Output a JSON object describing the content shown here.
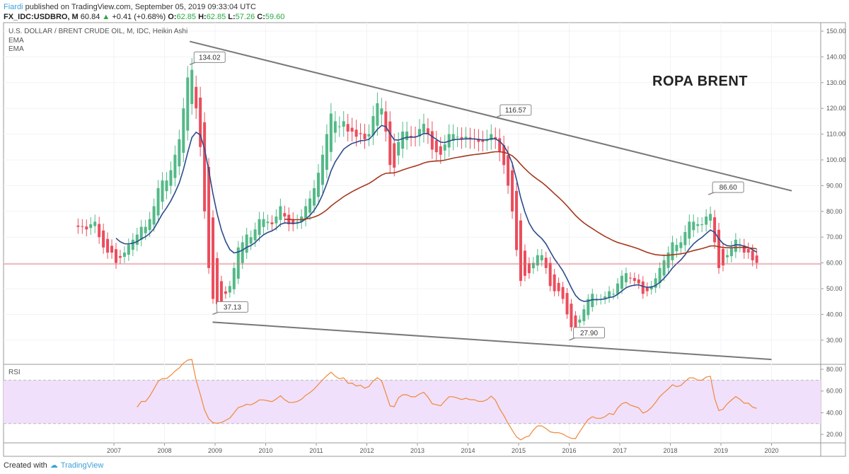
{
  "header": {
    "author": "Fiardi",
    "published": "published on TradingView.com, September 05, 2019 09:33:04 UTC",
    "symbol": "FX_IDC:USDBRO, M",
    "last": "60.84",
    "change": "+0.41 (+0.68%)",
    "o_label": "O:",
    "o": "62.85",
    "h_label": "H:",
    "h": "62.85",
    "l_label": "L:",
    "l": "57.26",
    "c_label": "C:",
    "c": "59.60"
  },
  "legend": {
    "series": "U.S. DOLLAR / BRENT CRUDE OIL, M, IDC, Heikin Ashi",
    "ema1": "EMA",
    "ema2": "EMA",
    "rsi": "RSI"
  },
  "annotation_title": "ROPA BRENT",
  "footer": {
    "created": "Created with",
    "brand": "TradingView"
  },
  "colors": {
    "up": "#53b987",
    "down": "#eb4d5c",
    "ema_fast": "#2b4c8c",
    "ema_slow": "#a5381e",
    "rsi": "#f0883b",
    "rsi_band": "#f0e0fb",
    "trendline": "#787878",
    "last_line": "#e5636c"
  },
  "chart_data": {
    "type": "candlestick",
    "start_month": "2006-04",
    "heikin_ashi_close": [
      74,
      74,
      73,
      75,
      76,
      70,
      66,
      64,
      64,
      60,
      62,
      64,
      67,
      69,
      71,
      74,
      74,
      77,
      82,
      89,
      92,
      92,
      96,
      102,
      108,
      120,
      132,
      135,
      120,
      105,
      80,
      58,
      46,
      44,
      45,
      48,
      51,
      58,
      66,
      68,
      71,
      70,
      73,
      77,
      77,
      76,
      75,
      78,
      82,
      78,
      75,
      75,
      76,
      78,
      82,
      85,
      89,
      95,
      102,
      110,
      118,
      115,
      113,
      115,
      111,
      111,
      109,
      110,
      108,
      110,
      117,
      122,
      120,
      111,
      98,
      97,
      107,
      111,
      111,
      109,
      109,
      112,
      114,
      110,
      104,
      103,
      102,
      106,
      110,
      110,
      109,
      108,
      109,
      108,
      108,
      107,
      107,
      108,
      110,
      108,
      103,
      98,
      90,
      80,
      65,
      53,
      55,
      56,
      60,
      63,
      63,
      58,
      51,
      49,
      49,
      46,
      40,
      35,
      34,
      38,
      42,
      46,
      48,
      46,
      46,
      47,
      49,
      48,
      52,
      55,
      56,
      54,
      53,
      52,
      48,
      49,
      51,
      54,
      58,
      61,
      64,
      68,
      67,
      68,
      72,
      76,
      76,
      75,
      75,
      78,
      79,
      68,
      58,
      59,
      63,
      66,
      69,
      67,
      64,
      64,
      61,
      60
    ],
    "price_axis": {
      "ticks": [
        "150.00",
        "140.00",
        "130.00",
        "120.00",
        "110.00",
        "100.00",
        "90.00",
        "80.00",
        "70.00",
        "60.00",
        "50.00",
        "40.00",
        "30.00"
      ],
      "range": [
        20,
        153
      ]
    },
    "rsi_axis": {
      "ticks": [
        "80.00",
        "60.00",
        "40.00",
        "20.00"
      ],
      "band": [
        30,
        70
      ]
    },
    "time_axis": [
      "2007",
      "2008",
      "2009",
      "2010",
      "2011",
      "2012",
      "2013",
      "2014",
      "2015",
      "2016",
      "2017",
      "2018",
      "2019",
      "2020"
    ],
    "last_price": 59.6,
    "trendlines": [
      {
        "name": "upper",
        "from": [
          2008.5,
          146
        ],
        "to": [
          2020.4,
          88
        ]
      },
      {
        "name": "lower",
        "from": [
          2008.95,
          37
        ],
        "to": [
          2020.0,
          22.5
        ]
      }
    ],
    "callouts": [
      {
        "label": "134.02",
        "t": 2008.5,
        "v": 137
      },
      {
        "label": "116.57",
        "t": 2014.55,
        "v": 116.5
      },
      {
        "label": "86.60",
        "t": 2018.75,
        "v": 86.5
      },
      {
        "label": "37.13",
        "t": 2008.95,
        "v": 40
      },
      {
        "label": "27.90",
        "t": 2016.0,
        "v": 30
      }
    ],
    "ema_periods": [
      10,
      50
    ],
    "rsi_period": 14
  }
}
